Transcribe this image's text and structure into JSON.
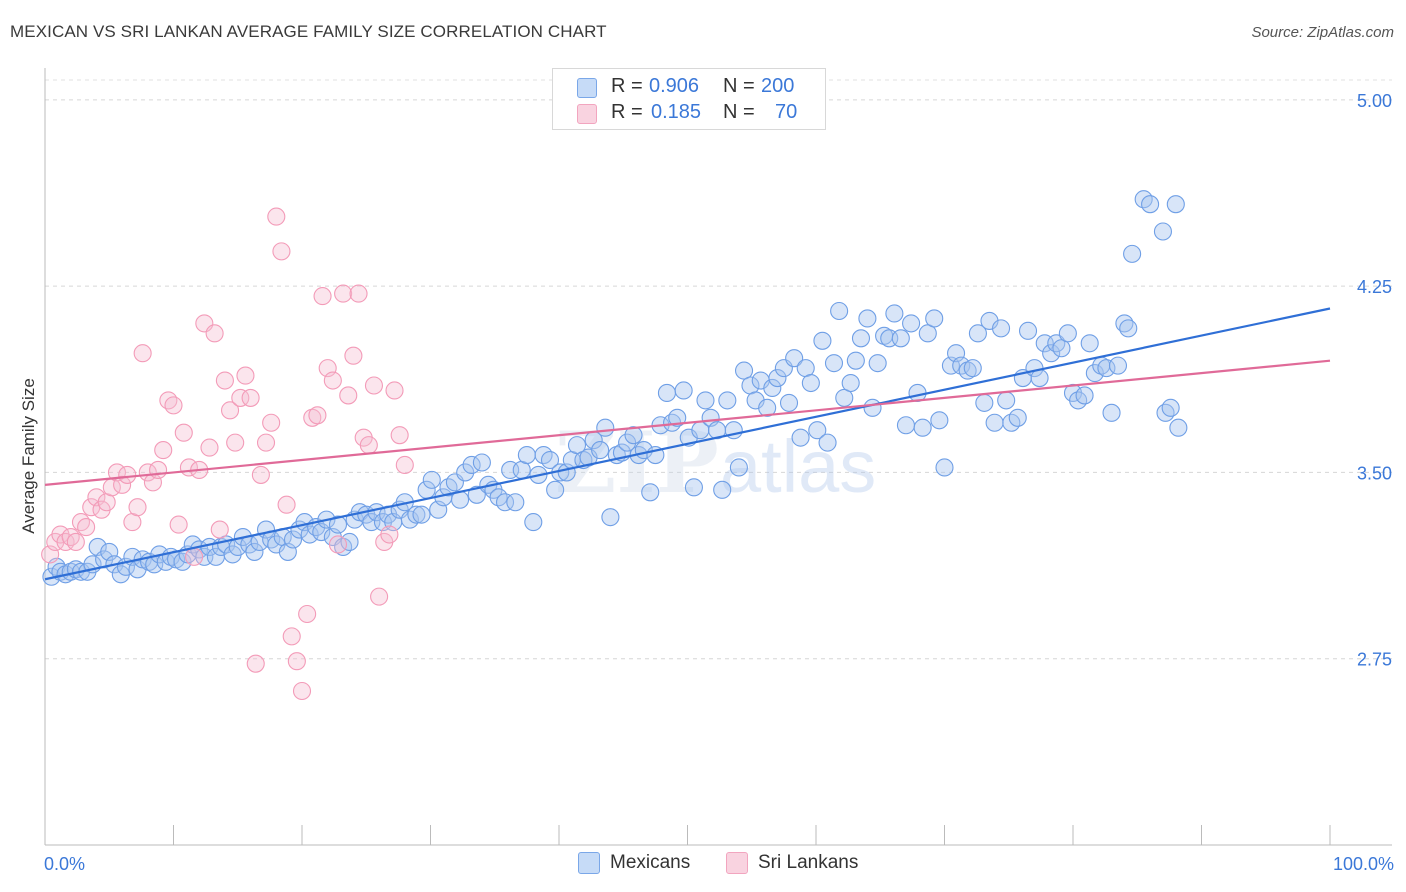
{
  "title": "MEXICAN VS SRI LANKAN AVERAGE FAMILY SIZE CORRELATION CHART",
  "source": "Source: ZipAtlas.com",
  "watermark": {
    "zip": "ZIP",
    "atlas": "atlas"
  },
  "legend_top": {
    "rows": [
      {
        "r_label": "R =",
        "r_value": "0.906",
        "n_label": "N =",
        "n_value": "200",
        "color": "#7aa7e8"
      },
      {
        "r_label": "R =",
        "r_value": "0.185",
        "n_label": "N =",
        "n_value": "70",
        "color": "#f2a5bf"
      }
    ]
  },
  "legend_bottom": [
    {
      "label": "Mexicans",
      "color": "#7aa7e8"
    },
    {
      "label": "Sri Lankans",
      "color": "#f2a5bf"
    }
  ],
  "chart_data": {
    "type": "scatter",
    "title": "MEXICAN VS SRI LANKAN AVERAGE FAMILY SIZE CORRELATION CHART",
    "xlabel": "",
    "ylabel": "Average Family Size",
    "x_tick_labels": [
      "0.0%",
      "100.0%"
    ],
    "y_tick_labels": [
      "5.00",
      "4.25",
      "3.50",
      "2.75"
    ],
    "y_ticks": [
      5.0,
      4.25,
      3.5,
      2.75
    ],
    "xlim": [
      0,
      100
    ],
    "ylim": [
      2.0,
      5.08
    ],
    "grid": "horizontal dashed",
    "legend_position": "top-center and bottom",
    "series": [
      {
        "name": "Mexicans",
        "color": "#6f9fe6",
        "trend": {
          "x": [
            0,
            100
          ],
          "y": [
            3.07,
            4.16
          ]
        },
        "points": [
          [
            0.5,
            3.08
          ],
          [
            0.9,
            3.12
          ],
          [
            1.2,
            3.1
          ],
          [
            1.6,
            3.09
          ],
          [
            2.0,
            3.1
          ],
          [
            2.4,
            3.11
          ],
          [
            2.8,
            3.1
          ],
          [
            3.3,
            3.1
          ],
          [
            3.7,
            3.13
          ],
          [
            4.1,
            3.2
          ],
          [
            4.6,
            3.15
          ],
          [
            5.0,
            3.18
          ],
          [
            5.4,
            3.13
          ],
          [
            5.9,
            3.09
          ],
          [
            6.3,
            3.12
          ],
          [
            6.8,
            3.16
          ],
          [
            7.2,
            3.11
          ],
          [
            7.6,
            3.15
          ],
          [
            8.1,
            3.14
          ],
          [
            8.5,
            3.13
          ],
          [
            8.9,
            3.17
          ],
          [
            9.4,
            3.14
          ],
          [
            9.8,
            3.16
          ],
          [
            10.2,
            3.15
          ],
          [
            10.7,
            3.14
          ],
          [
            11.1,
            3.17
          ],
          [
            11.5,
            3.21
          ],
          [
            12.0,
            3.19
          ],
          [
            12.4,
            3.16
          ],
          [
            12.8,
            3.2
          ],
          [
            13.3,
            3.16
          ],
          [
            13.7,
            3.2
          ],
          [
            14.1,
            3.21
          ],
          [
            14.6,
            3.17
          ],
          [
            15.0,
            3.2
          ],
          [
            15.4,
            3.24
          ],
          [
            15.9,
            3.21
          ],
          [
            16.3,
            3.18
          ],
          [
            16.7,
            3.22
          ],
          [
            17.2,
            3.27
          ],
          [
            17.6,
            3.23
          ],
          [
            18.0,
            3.21
          ],
          [
            18.5,
            3.24
          ],
          [
            18.9,
            3.18
          ],
          [
            19.3,
            3.23
          ],
          [
            19.8,
            3.27
          ],
          [
            20.2,
            3.3
          ],
          [
            20.6,
            3.25
          ],
          [
            21.1,
            3.28
          ],
          [
            21.5,
            3.26
          ],
          [
            21.9,
            3.31
          ],
          [
            22.4,
            3.24
          ],
          [
            22.8,
            3.29
          ],
          [
            23.2,
            3.2
          ],
          [
            23.7,
            3.22
          ],
          [
            24.1,
            3.31
          ],
          [
            24.5,
            3.34
          ],
          [
            25.0,
            3.33
          ],
          [
            25.4,
            3.3
          ],
          [
            25.8,
            3.34
          ],
          [
            26.3,
            3.3
          ],
          [
            26.7,
            3.33
          ],
          [
            27.1,
            3.3
          ],
          [
            27.6,
            3.35
          ],
          [
            28.0,
            3.38
          ],
          [
            28.4,
            3.31
          ],
          [
            28.9,
            3.33
          ],
          [
            29.3,
            3.33
          ],
          [
            29.7,
            3.43
          ],
          [
            30.1,
            3.47
          ],
          [
            30.6,
            3.35
          ],
          [
            31.0,
            3.4
          ],
          [
            31.4,
            3.44
          ],
          [
            31.9,
            3.46
          ],
          [
            32.3,
            3.39
          ],
          [
            32.7,
            3.5
          ],
          [
            33.2,
            3.53
          ],
          [
            33.6,
            3.41
          ],
          [
            34.0,
            3.54
          ],
          [
            34.5,
            3.45
          ],
          [
            34.9,
            3.43
          ],
          [
            35.3,
            3.4
          ],
          [
            35.8,
            3.38
          ],
          [
            36.2,
            3.51
          ],
          [
            36.6,
            3.38
          ],
          [
            37.1,
            3.51
          ],
          [
            37.5,
            3.57
          ],
          [
            38.0,
            3.3
          ],
          [
            38.4,
            3.49
          ],
          [
            38.8,
            3.57
          ],
          [
            39.3,
            3.55
          ],
          [
            39.7,
            3.43
          ],
          [
            40.1,
            3.5
          ],
          [
            40.6,
            3.5
          ],
          [
            41.0,
            3.55
          ],
          [
            41.4,
            3.61
          ],
          [
            41.9,
            3.55
          ],
          [
            42.3,
            3.56
          ],
          [
            42.7,
            3.63
          ],
          [
            43.2,
            3.59
          ],
          [
            43.6,
            3.68
          ],
          [
            44.0,
            3.32
          ],
          [
            44.5,
            3.57
          ],
          [
            44.9,
            3.58
          ],
          [
            45.3,
            3.62
          ],
          [
            45.8,
            3.65
          ],
          [
            46.2,
            3.57
          ],
          [
            46.6,
            3.59
          ],
          [
            47.1,
            3.42
          ],
          [
            47.5,
            3.57
          ],
          [
            47.9,
            3.69
          ],
          [
            48.4,
            3.82
          ],
          [
            48.8,
            3.7
          ],
          [
            49.2,
            3.72
          ],
          [
            49.7,
            3.83
          ],
          [
            50.1,
            3.64
          ],
          [
            50.5,
            3.44
          ],
          [
            51.0,
            3.67
          ],
          [
            51.4,
            3.79
          ],
          [
            51.8,
            3.72
          ],
          [
            52.3,
            3.67
          ],
          [
            52.7,
            3.43
          ],
          [
            53.1,
            3.79
          ],
          [
            53.6,
            3.67
          ],
          [
            54.0,
            3.52
          ],
          [
            54.4,
            3.91
          ],
          [
            54.9,
            3.85
          ],
          [
            55.3,
            3.79
          ],
          [
            55.7,
            3.87
          ],
          [
            56.2,
            3.76
          ],
          [
            56.6,
            3.84
          ],
          [
            57.0,
            3.88
          ],
          [
            57.5,
            3.92
          ],
          [
            57.9,
            3.78
          ],
          [
            58.3,
            3.96
          ],
          [
            58.8,
            3.64
          ],
          [
            59.2,
            3.92
          ],
          [
            59.6,
            3.86
          ],
          [
            60.1,
            3.67
          ],
          [
            60.5,
            4.03
          ],
          [
            60.9,
            3.62
          ],
          [
            61.4,
            3.94
          ],
          [
            61.8,
            4.15
          ],
          [
            62.2,
            3.8
          ],
          [
            62.7,
            3.86
          ],
          [
            63.1,
            3.95
          ],
          [
            63.5,
            4.04
          ],
          [
            64.0,
            4.12
          ],
          [
            64.4,
            3.76
          ],
          [
            64.8,
            3.94
          ],
          [
            65.3,
            4.05
          ],
          [
            65.7,
            4.04
          ],
          [
            66.1,
            4.14
          ],
          [
            66.6,
            4.04
          ],
          [
            67.0,
            3.69
          ],
          [
            67.4,
            4.1
          ],
          [
            67.9,
            3.82
          ],
          [
            68.3,
            3.68
          ],
          [
            68.7,
            4.06
          ],
          [
            69.2,
            4.12
          ],
          [
            69.6,
            3.71
          ],
          [
            70.0,
            3.52
          ],
          [
            70.5,
            3.93
          ],
          [
            70.9,
            3.98
          ],
          [
            71.3,
            3.93
          ],
          [
            71.8,
            3.91
          ],
          [
            72.2,
            3.92
          ],
          [
            72.6,
            4.06
          ],
          [
            73.1,
            3.78
          ],
          [
            73.5,
            4.11
          ],
          [
            73.9,
            3.7
          ],
          [
            74.4,
            4.08
          ],
          [
            74.8,
            3.79
          ],
          [
            75.2,
            3.7
          ],
          [
            75.7,
            3.72
          ],
          [
            76.1,
            3.88
          ],
          [
            76.5,
            4.07
          ],
          [
            77.0,
            3.92
          ],
          [
            77.4,
            3.88
          ],
          [
            77.8,
            4.02
          ],
          [
            78.3,
            3.98
          ],
          [
            78.7,
            4.02
          ],
          [
            79.1,
            4.0
          ],
          [
            79.6,
            4.06
          ],
          [
            80.0,
            3.82
          ],
          [
            80.4,
            3.79
          ],
          [
            80.9,
            3.81
          ],
          [
            81.3,
            4.02
          ],
          [
            81.7,
            3.9
          ],
          [
            82.2,
            3.93
          ],
          [
            82.6,
            3.92
          ],
          [
            83.0,
            3.74
          ],
          [
            83.5,
            3.93
          ],
          [
            84.0,
            4.1
          ],
          [
            84.3,
            4.08
          ],
          [
            84.6,
            4.38
          ],
          [
            85.5,
            4.6
          ],
          [
            86.0,
            4.58
          ],
          [
            87.0,
            4.47
          ],
          [
            88.0,
            4.58
          ],
          [
            87.2,
            3.74
          ],
          [
            87.6,
            3.76
          ],
          [
            88.2,
            3.68
          ]
        ]
      },
      {
        "name": "Sri Lankans",
        "color": "#f39bb8",
        "trend": {
          "x": [
            0,
            100
          ],
          "y": [
            3.45,
            3.95
          ]
        },
        "points": [
          [
            0.4,
            3.17
          ],
          [
            0.8,
            3.22
          ],
          [
            1.2,
            3.25
          ],
          [
            1.6,
            3.22
          ],
          [
            2.0,
            3.24
          ],
          [
            2.4,
            3.22
          ],
          [
            2.8,
            3.3
          ],
          [
            3.2,
            3.28
          ],
          [
            3.6,
            3.36
          ],
          [
            4.0,
            3.4
          ],
          [
            4.4,
            3.35
          ],
          [
            4.8,
            3.38
          ],
          [
            5.2,
            3.44
          ],
          [
            5.6,
            3.5
          ],
          [
            6.0,
            3.45
          ],
          [
            6.4,
            3.49
          ],
          [
            6.8,
            3.3
          ],
          [
            7.2,
            3.36
          ],
          [
            7.6,
            3.98
          ],
          [
            8.0,
            3.5
          ],
          [
            8.4,
            3.46
          ],
          [
            8.8,
            3.51
          ],
          [
            9.2,
            3.59
          ],
          [
            9.6,
            3.79
          ],
          [
            10.0,
            3.77
          ],
          [
            10.4,
            3.29
          ],
          [
            10.8,
            3.66
          ],
          [
            11.2,
            3.52
          ],
          [
            11.6,
            3.16
          ],
          [
            12.0,
            3.51
          ],
          [
            12.4,
            4.1
          ],
          [
            12.8,
            3.6
          ],
          [
            13.2,
            4.06
          ],
          [
            13.6,
            3.27
          ],
          [
            14.0,
            3.87
          ],
          [
            14.4,
            3.75
          ],
          [
            14.8,
            3.62
          ],
          [
            15.2,
            3.8
          ],
          [
            15.6,
            3.89
          ],
          [
            16.0,
            3.8
          ],
          [
            16.4,
            2.73
          ],
          [
            16.8,
            3.49
          ],
          [
            17.2,
            3.62
          ],
          [
            17.6,
            3.7
          ],
          [
            18.0,
            4.53
          ],
          [
            18.4,
            4.39
          ],
          [
            18.8,
            3.37
          ],
          [
            19.2,
            2.84
          ],
          [
            19.6,
            2.74
          ],
          [
            20.0,
            2.62
          ],
          [
            20.4,
            2.93
          ],
          [
            20.8,
            3.72
          ],
          [
            21.2,
            3.73
          ],
          [
            21.6,
            4.21
          ],
          [
            22.0,
            3.92
          ],
          [
            22.4,
            3.87
          ],
          [
            22.8,
            3.21
          ],
          [
            23.2,
            4.22
          ],
          [
            23.6,
            3.81
          ],
          [
            24.0,
            3.97
          ],
          [
            24.4,
            4.22
          ],
          [
            24.8,
            3.64
          ],
          [
            25.2,
            3.61
          ],
          [
            25.6,
            3.85
          ],
          [
            26.0,
            3.0
          ],
          [
            26.4,
            3.22
          ],
          [
            26.8,
            3.25
          ],
          [
            27.2,
            3.83
          ],
          [
            27.6,
            3.65
          ],
          [
            28.0,
            3.53
          ]
        ]
      }
    ]
  }
}
